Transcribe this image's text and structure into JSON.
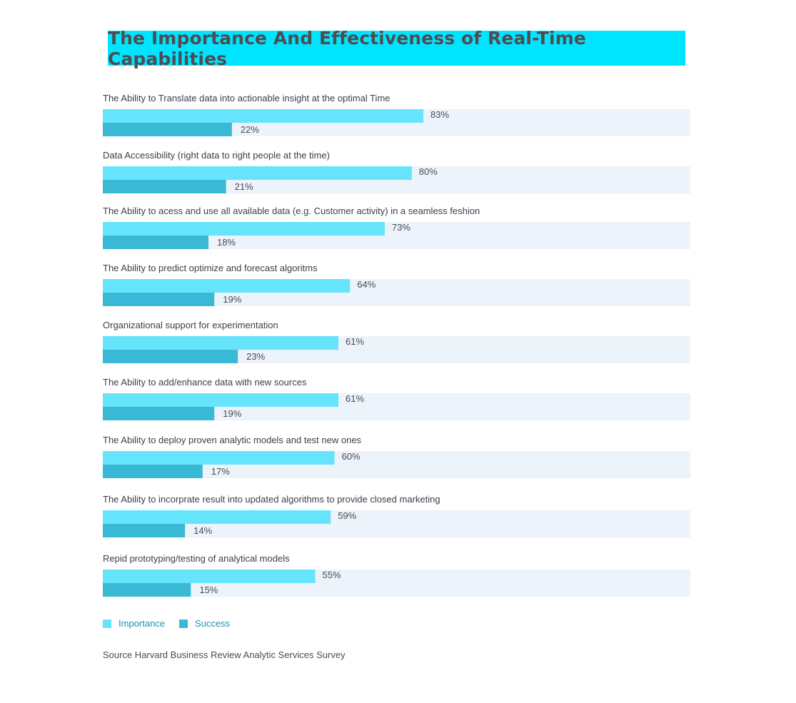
{
  "colors": {
    "title_bg": "#00e5ff",
    "track": "#edf3fa",
    "importance": "#66e4fb",
    "success": "#3ab9d6",
    "label_text": "#3d3d4a",
    "value_text": "#4a4a55",
    "legend_text": "#1f8fb0"
  },
  "chart_data": {
    "type": "bar",
    "orientation": "horizontal",
    "title": "The Importance And Effectiveness of Real-Time Capabilities",
    "categories": [
      "The Ability to Translate data into actionable insight at the optimal Time",
      "Data Accessibility (right data to right people at the time)",
      "The Ability to acess and use all available data (e.g. Customer activity) in a seamless feshion",
      "The Ability to predict optimize and forecast algoritms",
      "Organizational support for experimentation",
      "The Ability to add/enhance data with new sources",
      "The Ability to deploy proven analytic models and test new ones",
      "The Ability to incorprate result into updated algorithms to provide closed marketing",
      "Repid prototyping/testing of analytical models"
    ],
    "series": [
      {
        "name": "Importance",
        "values": [
          83,
          80,
          73,
          64,
          61,
          61,
          60,
          59,
          55
        ]
      },
      {
        "name": "Success",
        "values": [
          22,
          21,
          18,
          19,
          23,
          19,
          17,
          14,
          15
        ]
      }
    ],
    "value_labels": {
      "Importance": [
        "83%",
        "80%",
        "73%",
        "64%",
        "61%",
        "61%",
        "60%",
        "59%",
        "55%"
      ],
      "Success": [
        "22%",
        "21%",
        "18%",
        "19%",
        "23%",
        "19%",
        "17%",
        "14%",
        "15%"
      ]
    },
    "legend_position": "bottom-left",
    "grid": false
  },
  "source": "Source Harvard Business Review Analytic Services Survey"
}
